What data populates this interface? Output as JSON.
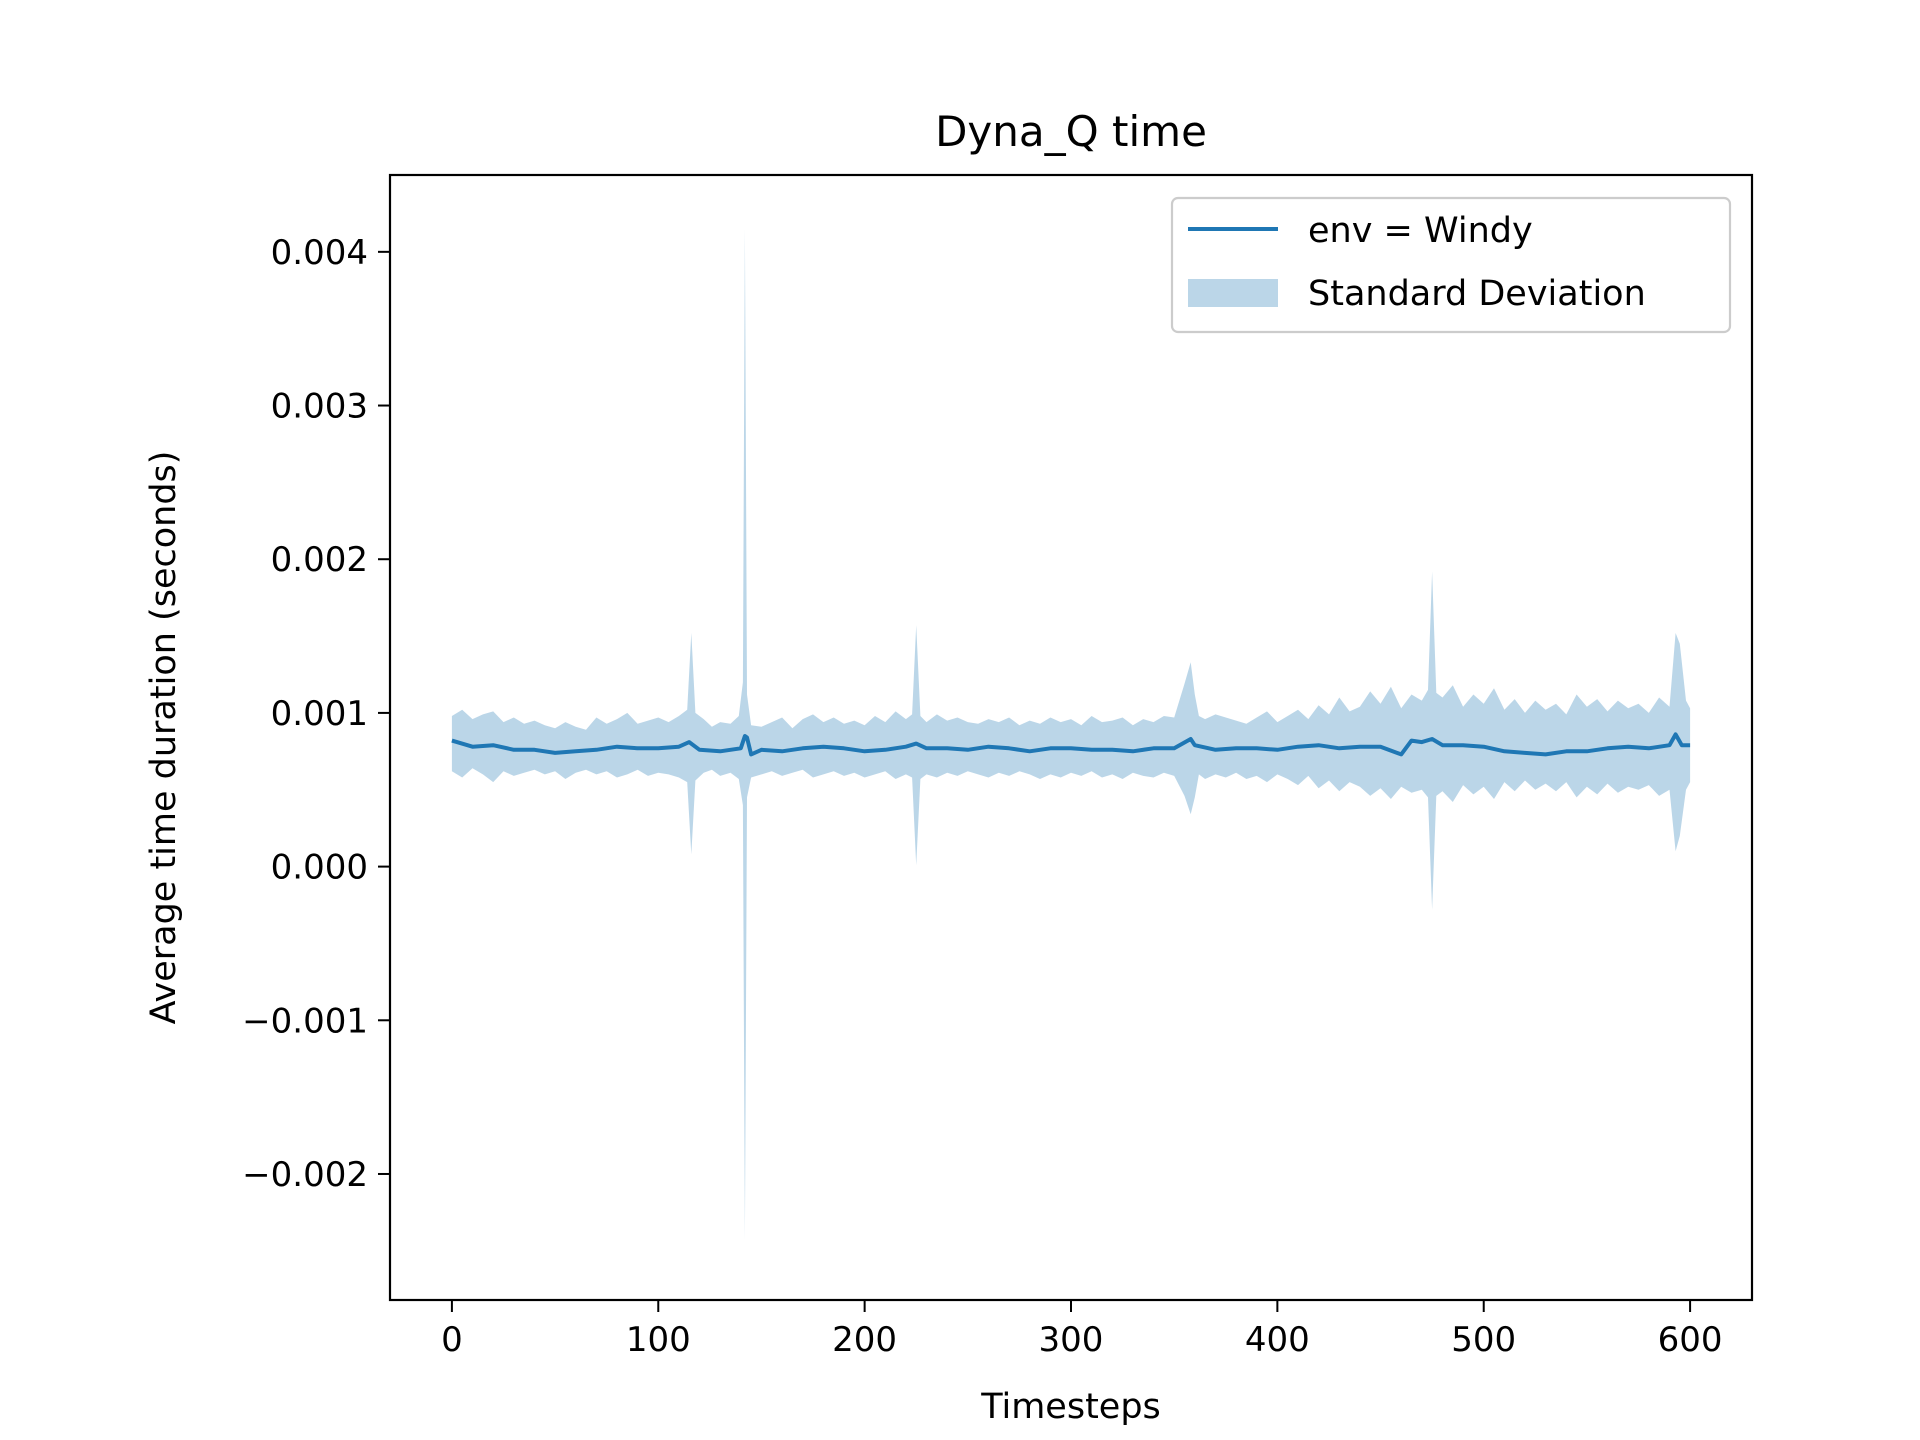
{
  "chart_data": {
    "type": "line",
    "title": "Dyna_Q time",
    "xlabel": "Timesteps",
    "ylabel": "Average time duration (seconds)",
    "xlim": [
      -30,
      630
    ],
    "ylim": [
      -0.00282,
      0.0045
    ],
    "xticks": [
      0,
      100,
      200,
      300,
      400,
      500,
      600
    ],
    "xtick_labels": [
      "0",
      "100",
      "200",
      "300",
      "400",
      "500",
      "600"
    ],
    "yticks": [
      -0.002,
      -0.001,
      0.0,
      0.001,
      0.002,
      0.003,
      0.004
    ],
    "ytick_labels": [
      "−0.002",
      "−0.001",
      "0.000",
      "0.001",
      "0.002",
      "0.003",
      "0.004"
    ],
    "grid": false,
    "legend_position": "upper right",
    "series": [
      {
        "name": "env = Windy",
        "color": "#1f77b4",
        "x": [
          0,
          10,
          20,
          30,
          40,
          50,
          60,
          70,
          80,
          90,
          100,
          110,
          115,
          120,
          130,
          140,
          142,
          143,
          145,
          150,
          160,
          170,
          180,
          190,
          200,
          210,
          220,
          225,
          230,
          240,
          250,
          260,
          270,
          280,
          290,
          300,
          310,
          320,
          330,
          340,
          350,
          358,
          360,
          370,
          380,
          390,
          400,
          410,
          420,
          430,
          440,
          450,
          460,
          465,
          470,
          475,
          480,
          490,
          500,
          510,
          520,
          530,
          540,
          550,
          560,
          570,
          580,
          590,
          593,
          596,
          600
        ],
        "y": [
          0.00082,
          0.00078,
          0.00079,
          0.00076,
          0.00076,
          0.00074,
          0.00075,
          0.00076,
          0.00078,
          0.00077,
          0.00077,
          0.00078,
          0.00081,
          0.00076,
          0.00075,
          0.00077,
          0.00085,
          0.00084,
          0.00073,
          0.00076,
          0.00075,
          0.00077,
          0.00078,
          0.00077,
          0.00075,
          0.00076,
          0.00078,
          0.0008,
          0.00077,
          0.00077,
          0.00076,
          0.00078,
          0.00077,
          0.00075,
          0.00077,
          0.00077,
          0.00076,
          0.00076,
          0.00075,
          0.00077,
          0.00077,
          0.00083,
          0.00079,
          0.00076,
          0.00077,
          0.00077,
          0.00076,
          0.00078,
          0.00079,
          0.00077,
          0.00078,
          0.00078,
          0.00073,
          0.00082,
          0.00081,
          0.00083,
          0.00079,
          0.00079,
          0.00078,
          0.00075,
          0.00074,
          0.00073,
          0.00075,
          0.00075,
          0.00077,
          0.00078,
          0.00077,
          0.00079,
          0.00086,
          0.00079,
          0.00079
        ]
      },
      {
        "name": "Standard Deviation",
        "color": "#1f77b4",
        "opacity": 0.3,
        "x": [
          0,
          5,
          10,
          15,
          20,
          25,
          30,
          35,
          40,
          45,
          50,
          55,
          60,
          65,
          70,
          75,
          80,
          85,
          90,
          95,
          100,
          105,
          110,
          114,
          116,
          118,
          122,
          126,
          130,
          135,
          139,
          141,
          142,
          143,
          145,
          150,
          155,
          160,
          165,
          170,
          175,
          180,
          185,
          190,
          195,
          200,
          205,
          210,
          215,
          220,
          223,
          225,
          227,
          230,
          235,
          240,
          245,
          250,
          255,
          260,
          265,
          270,
          275,
          280,
          285,
          290,
          295,
          300,
          305,
          310,
          315,
          320,
          325,
          330,
          335,
          340,
          345,
          350,
          355,
          358,
          360,
          362,
          365,
          370,
          375,
          380,
          385,
          390,
          395,
          400,
          405,
          410,
          415,
          420,
          425,
          430,
          435,
          440,
          445,
          450,
          455,
          460,
          465,
          470,
          473,
          475,
          477,
          480,
          485,
          490,
          495,
          500,
          505,
          510,
          515,
          520,
          525,
          530,
          535,
          540,
          545,
          550,
          555,
          560,
          565,
          570,
          575,
          580,
          585,
          590,
          593,
          595,
          598,
          600
        ],
        "upper": [
          0.00098,
          0.00102,
          0.00096,
          0.00099,
          0.00101,
          0.00094,
          0.00097,
          0.00093,
          0.00095,
          0.00092,
          0.0009,
          0.00094,
          0.00091,
          0.00089,
          0.00097,
          0.00093,
          0.00096,
          0.001,
          0.00093,
          0.00095,
          0.00097,
          0.00094,
          0.00098,
          0.00102,
          0.00152,
          0.001,
          0.00096,
          0.00091,
          0.00094,
          0.00093,
          0.00098,
          0.0012,
          0.00415,
          0.00112,
          0.00092,
          0.00091,
          0.00094,
          0.00097,
          0.0009,
          0.00096,
          0.00099,
          0.00094,
          0.00097,
          0.00093,
          0.00095,
          0.00092,
          0.00098,
          0.00094,
          0.00101,
          0.00096,
          0.00099,
          0.00157,
          0.00098,
          0.00094,
          0.00099,
          0.00095,
          0.00097,
          0.00094,
          0.00093,
          0.00096,
          0.00094,
          0.00097,
          0.00092,
          0.00095,
          0.00093,
          0.00097,
          0.00094,
          0.00096,
          0.00092,
          0.00098,
          0.00094,
          0.00095,
          0.00097,
          0.00092,
          0.00096,
          0.00094,
          0.00098,
          0.00097,
          0.00119,
          0.00133,
          0.00112,
          0.00098,
          0.00096,
          0.00099,
          0.00097,
          0.00095,
          0.00093,
          0.00097,
          0.00101,
          0.00094,
          0.00098,
          0.00102,
          0.00096,
          0.00105,
          0.00099,
          0.0011,
          0.00101,
          0.00104,
          0.00114,
          0.00106,
          0.00117,
          0.00103,
          0.00112,
          0.00108,
          0.00115,
          0.00192,
          0.00113,
          0.0011,
          0.00118,
          0.00104,
          0.00112,
          0.00106,
          0.00116,
          0.00102,
          0.00109,
          0.001,
          0.00108,
          0.00102,
          0.00106,
          0.00099,
          0.00112,
          0.00104,
          0.00109,
          0.00101,
          0.00108,
          0.00103,
          0.00106,
          0.001,
          0.0011,
          0.00104,
          0.00152,
          0.00145,
          0.00108,
          0.00103
        ],
        "lower": [
          0.00062,
          0.00058,
          0.00064,
          0.0006,
          0.00055,
          0.00062,
          0.00059,
          0.00061,
          0.00063,
          0.0006,
          0.00062,
          0.00057,
          0.00061,
          0.00063,
          0.0006,
          0.00062,
          0.00058,
          0.0006,
          0.00063,
          0.00059,
          0.00061,
          0.0006,
          0.00058,
          0.00055,
          8e-05,
          0.00056,
          0.00061,
          0.00063,
          0.00059,
          0.00061,
          0.00057,
          0.0004,
          -0.00243,
          0.00045,
          0.00058,
          0.0006,
          0.00062,
          0.00059,
          0.00061,
          0.00063,
          0.00058,
          0.0006,
          0.00062,
          0.00059,
          0.00061,
          0.00058,
          0.0006,
          0.00062,
          0.00057,
          0.0006,
          0.00058,
          1e-05,
          0.00057,
          0.0006,
          0.00058,
          0.00061,
          0.00059,
          0.00062,
          0.0006,
          0.00058,
          0.00061,
          0.00059,
          0.00062,
          0.0006,
          0.00057,
          0.0006,
          0.00058,
          0.00061,
          0.00059,
          0.00062,
          0.00058,
          0.0006,
          0.00057,
          0.00061,
          0.00059,
          0.00058,
          0.00061,
          0.00059,
          0.00046,
          0.00034,
          0.00045,
          0.0006,
          0.00057,
          0.0006,
          0.00058,
          0.00061,
          0.00057,
          0.00059,
          0.00055,
          0.0006,
          0.00057,
          0.00053,
          0.00059,
          0.00051,
          0.00056,
          0.00049,
          0.00055,
          0.00052,
          0.00046,
          0.00051,
          0.00044,
          0.00052,
          0.00048,
          0.0005,
          0.00045,
          -0.00028,
          0.00046,
          0.00049,
          0.00042,
          0.00053,
          0.00047,
          0.00052,
          0.00044,
          0.00055,
          0.00049,
          0.00056,
          0.0005,
          0.00054,
          0.00049,
          0.00055,
          0.00045,
          0.00052,
          0.00047,
          0.00054,
          0.00048,
          0.00052,
          0.0005,
          0.00053,
          0.00046,
          0.0005,
          0.0001,
          0.0002,
          0.0005,
          0.00055
        ]
      }
    ]
  }
}
